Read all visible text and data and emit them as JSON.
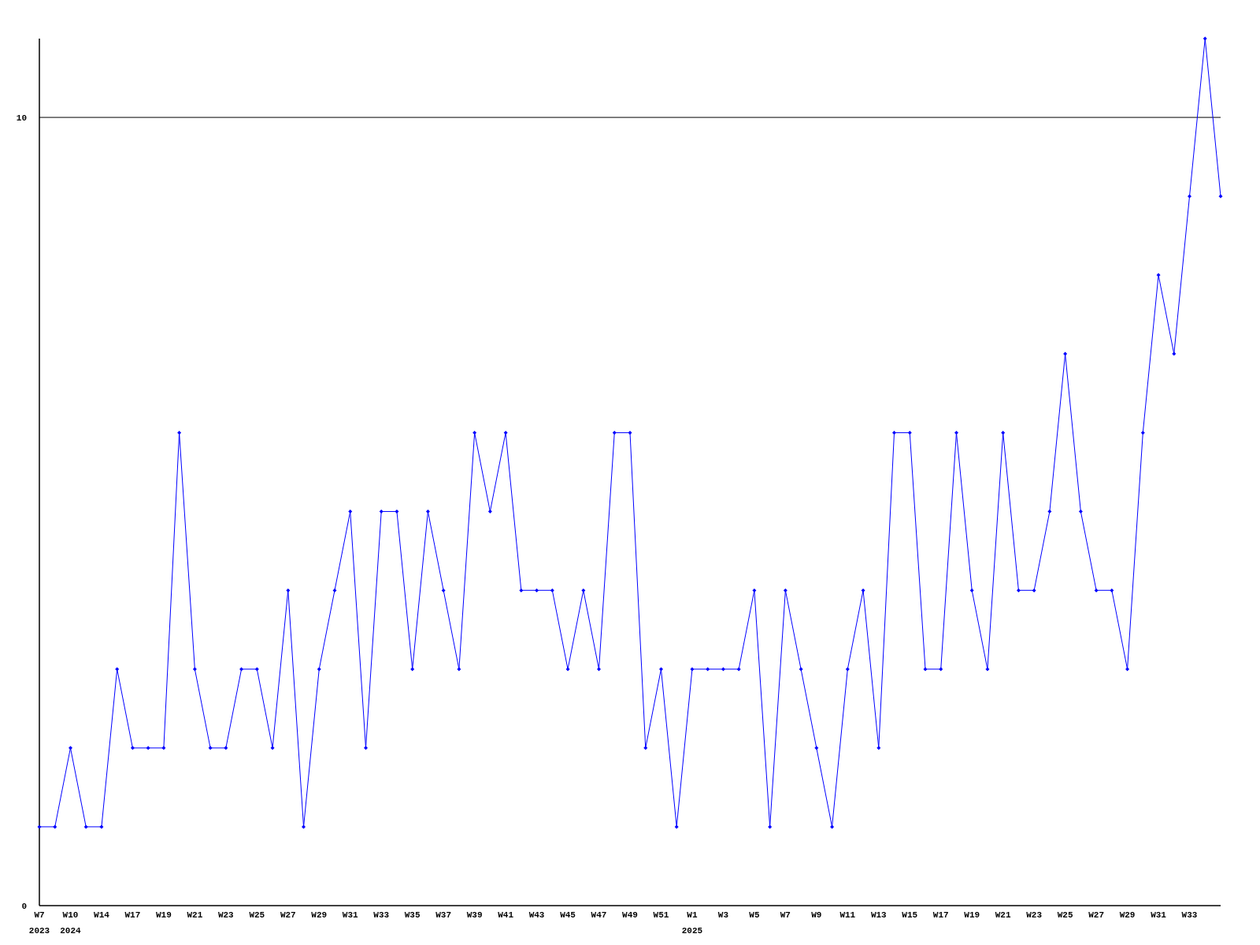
{
  "chart_data": {
    "type": "line",
    "categories": [
      "W7\n2023",
      null,
      "W10\n2024",
      null,
      "W14",
      null,
      "W17",
      null,
      "W19",
      null,
      "W21",
      null,
      "W23",
      null,
      "W25",
      null,
      "W27",
      null,
      "W29",
      null,
      "W31",
      null,
      "W33",
      null,
      "W35",
      null,
      "W37",
      null,
      "W39",
      null,
      "W41",
      null,
      "W43",
      null,
      "W45",
      null,
      "W47",
      null,
      "W49",
      null,
      "W51",
      null,
      "W1\n2025",
      null,
      "W3",
      null,
      "W5",
      null,
      "W7",
      null,
      "W9",
      null,
      "W11",
      null,
      "W13",
      null,
      "W15",
      null,
      "W17",
      null,
      "W19",
      null,
      "W21",
      null,
      "W23",
      null,
      "W25",
      null,
      "W27",
      null,
      "W29",
      null,
      "W31",
      null,
      "W33",
      null,
      null
    ],
    "series": [
      {
        "color": "#0000ff",
        "values": [
          1,
          1,
          2,
          1,
          1,
          3,
          2,
          2,
          2,
          6,
          3,
          2,
          2,
          3,
          3,
          2,
          4,
          1,
          3,
          4,
          5,
          2,
          5,
          5,
          3,
          5,
          4,
          3,
          6,
          5,
          6,
          4,
          4,
          4,
          3,
          4,
          3,
          6,
          6,
          2,
          3,
          1,
          3,
          3,
          3,
          3,
          4,
          1,
          4,
          3,
          2,
          1,
          3,
          4,
          2,
          6,
          6,
          3,
          3,
          6,
          4,
          3,
          6,
          4,
          4,
          5,
          7,
          5,
          4,
          4,
          3,
          6,
          8,
          7,
          9,
          11,
          9
        ]
      }
    ],
    "ylim": [
      0,
      11
    ],
    "yticks": [
      0,
      10
    ],
    "grid": "y",
    "marker": "diamond"
  }
}
